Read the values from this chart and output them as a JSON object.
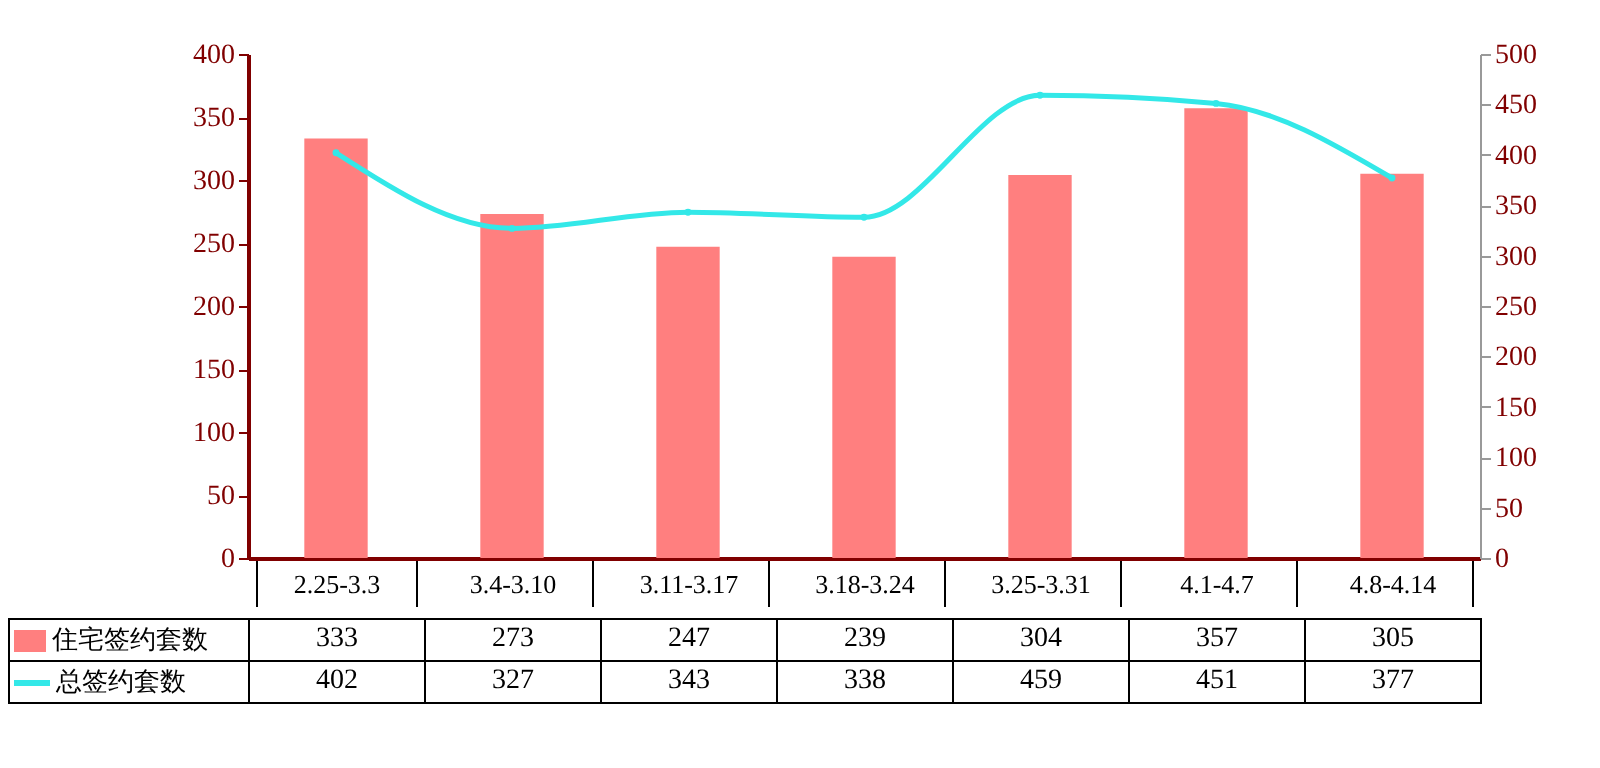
{
  "chart_data": {
    "type": "bar",
    "categories": [
      "2.25-3.3",
      "3.4-3.10",
      "3.11-3.17",
      "3.18-3.24",
      "3.25-3.31",
      "4.1-4.7",
      "4.8-4.14"
    ],
    "series": [
      {
        "name": "住宅签约套数",
        "color": "#ff7f7f",
        "values": [
          333,
          273,
          247,
          239,
          304,
          357,
          305
        ]
      },
      {
        "name": "总签约套数",
        "type": "line",
        "axis": "y2",
        "color": "#33e8e8",
        "marker": "circle",
        "values": [
          402,
          327,
          343,
          338,
          459,
          451,
          377
        ]
      }
    ],
    "ylim": [
      0,
      400
    ],
    "yticks": [
      0,
      50,
      100,
      150,
      200,
      250,
      300,
      350,
      400
    ],
    "y2lim": [
      0,
      500
    ],
    "y2ticks": [
      0,
      50,
      100,
      150,
      200,
      250,
      300,
      350,
      400,
      450,
      500
    ],
    "data_labels": true,
    "grid": false,
    "legend": "bottom left"
  }
}
